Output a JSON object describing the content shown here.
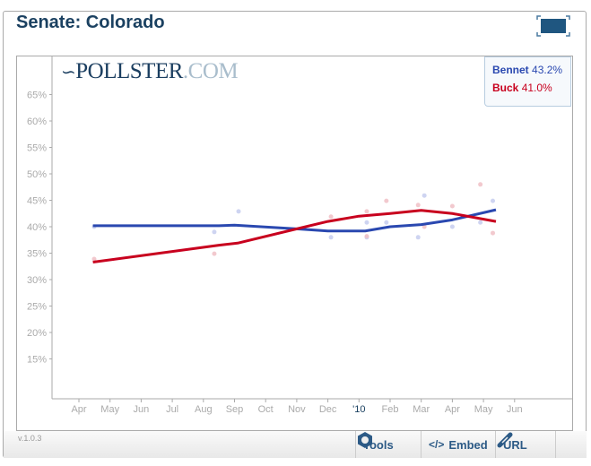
{
  "header": {
    "title": "Senate: Colorado"
  },
  "logo": {
    "text_main": "POLLSTER",
    "text_suffix": ".COM"
  },
  "footer": {
    "version": "v.1.0.3",
    "tools_label": "Tools",
    "embed_label": "Embed",
    "url_label": "URL"
  },
  "chart_data": {
    "type": "line",
    "title": "Senate: Colorado",
    "x_tick_labels": [
      "Apr",
      "May",
      "Jun",
      "Jul",
      "Aug",
      "Sep",
      "Oct",
      "Nov",
      "Dec",
      "'10",
      "Feb",
      "Mar",
      "Apr",
      "May",
      "Jun"
    ],
    "x_note": "x values are months since Apr 2009 (0 = Apr 2009)",
    "y_tick_labels": [
      "65%",
      "60%",
      "55%",
      "50%",
      "45%",
      "40%",
      "35%",
      "30%",
      "25%",
      "20%",
      "15%"
    ],
    "y_ticks": [
      65,
      60,
      55,
      50,
      45,
      40,
      35,
      30,
      25,
      20,
      15
    ],
    "ylim": [
      10,
      68
    ],
    "xlim": [
      -0.9,
      15.8
    ],
    "grid": false,
    "legend_placement": "top-right",
    "series": [
      {
        "name": "Bennet",
        "value_label": "43.2%",
        "color": "#2a48b0",
        "dot_color": "#c5cdee",
        "trend": [
          [
            0.45,
            40.2
          ],
          [
            4.5,
            40.2
          ],
          [
            5.0,
            40.3
          ],
          [
            7.0,
            39.6
          ],
          [
            8.0,
            39.2
          ],
          [
            9.2,
            39.2
          ],
          [
            10.0,
            40.0
          ],
          [
            11.0,
            40.4
          ],
          [
            12.0,
            41.3
          ],
          [
            13.4,
            43.2
          ]
        ],
        "polls": [
          [
            0.49,
            40
          ],
          [
            4.35,
            39
          ],
          [
            5.13,
            42.9
          ],
          [
            8.1,
            38
          ],
          [
            9.25,
            40.8
          ],
          [
            9.88,
            40.8
          ],
          [
            11.1,
            45.9
          ],
          [
            10.9,
            38
          ],
          [
            12.0,
            40
          ],
          [
            12.9,
            40.8
          ],
          [
            13.3,
            44.9
          ],
          [
            9.25,
            38
          ]
        ]
      },
      {
        "name": "Buck",
        "value_label": "41.0%",
        "color": "#c8001e",
        "dot_color": "#f0c0c6",
        "trend": [
          [
            0.45,
            33.3
          ],
          [
            4.5,
            36.5
          ],
          [
            5.1,
            36.9
          ],
          [
            7.0,
            39.6
          ],
          [
            8.0,
            41.0
          ],
          [
            9.0,
            42.0
          ],
          [
            10.0,
            42.5
          ],
          [
            11.0,
            43.1
          ],
          [
            12.0,
            42.5
          ],
          [
            13.4,
            41.0
          ]
        ],
        "polls": [
          [
            0.49,
            33.9
          ],
          [
            4.35,
            34.9
          ],
          [
            8.1,
            41.9
          ],
          [
            9.25,
            42.9
          ],
          [
            9.88,
            44.9
          ],
          [
            10.9,
            44.1
          ],
          [
            12.0,
            43.9
          ],
          [
            12.9,
            48
          ],
          [
            13.3,
            38.8
          ],
          [
            9.25,
            38.2
          ],
          [
            11.1,
            40
          ]
        ]
      }
    ]
  }
}
